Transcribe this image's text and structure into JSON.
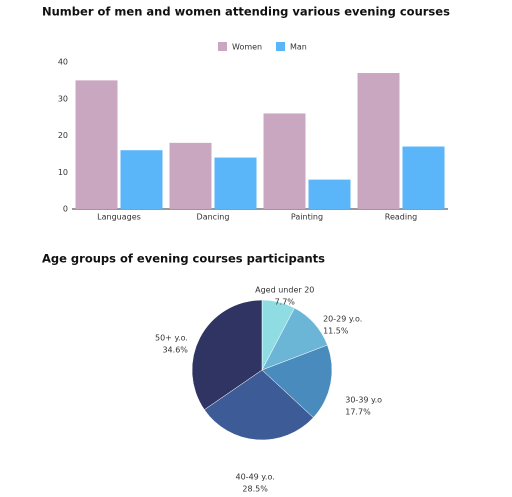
{
  "chart_data": [
    {
      "type": "bar",
      "title": "Number of men and women attending various evening courses",
      "categories": [
        "Languages",
        "Dancing",
        "Painting",
        "Reading"
      ],
      "series": [
        {
          "name": "Women",
          "color": "#c9a7c0",
          "values": [
            35,
            18,
            26,
            37
          ]
        },
        {
          "name": "Man",
          "color": "#5bb5f9",
          "values": [
            16,
            14,
            8,
            17
          ]
        }
      ],
      "ylim": [
        0,
        40
      ],
      "yticks": [
        0,
        10,
        20,
        30,
        40
      ],
      "grid": false,
      "legend": "top"
    },
    {
      "type": "pie",
      "title": "Age groups of evening courses participants",
      "categories": [
        "Aged under 20",
        "20-29 y.o.",
        "30-39 y.o",
        "40-49 y.o.",
        "50+ y.o."
      ],
      "values": [
        7.7,
        11.5,
        17.7,
        28.5,
        34.6
      ],
      "value_labels": [
        "7.7%",
        "11.5%",
        "17.7%",
        "28.5%",
        "34.6%"
      ],
      "colors": [
        "#8fdde3",
        "#6bb6d6",
        "#4a8bbd",
        "#3d5c97",
        "#2f3462"
      ]
    }
  ]
}
